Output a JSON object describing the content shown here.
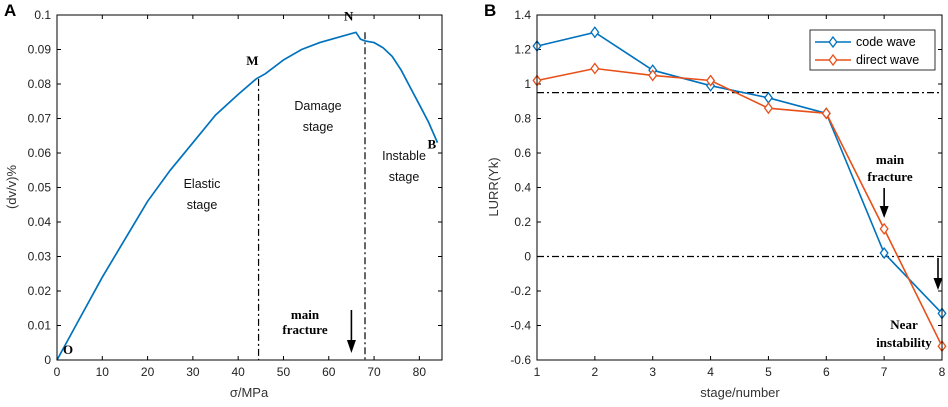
{
  "colors": {
    "blue": "#0072BD",
    "orange": "#E8501A"
  },
  "panel_a": {
    "label": "A",
    "chart_data": {
      "type": "line",
      "xlabel": "σ/MPa",
      "ylabel": "(dv/v)%",
      "xlim": [
        0,
        85
      ],
      "ylim": [
        0,
        0.1
      ],
      "xticks": [
        0,
        10,
        20,
        30,
        40,
        50,
        60,
        70,
        80
      ],
      "yticks": [
        0,
        0.01,
        0.02,
        0.03,
        0.04,
        0.05,
        0.06,
        0.07,
        0.08,
        0.09,
        0.1
      ],
      "x": [
        0,
        5,
        10,
        15,
        20,
        25,
        30,
        35,
        40,
        44,
        46,
        50,
        54,
        58,
        62,
        66,
        67,
        68,
        70,
        72,
        74,
        76,
        78,
        80,
        82,
        84
      ],
      "y": [
        0,
        0.012,
        0.024,
        0.035,
        0.046,
        0.055,
        0.063,
        0.071,
        0.077,
        0.0815,
        0.083,
        0.087,
        0.09,
        0.092,
        0.0935,
        0.095,
        0.093,
        0.0925,
        0.092,
        0.0905,
        0.088,
        0.084,
        0.079,
        0.074,
        0.069,
        0.063
      ],
      "vlines": [
        44.5,
        68
      ],
      "points": [
        {
          "name": "O",
          "x": 0,
          "y": 0
        },
        {
          "name": "M",
          "x": 44,
          "y": 0.0815
        },
        {
          "name": "N",
          "x": 66,
          "y": 0.095
        },
        {
          "name": "B",
          "x": 84,
          "y": 0.063
        }
      ],
      "regions": [
        {
          "line1": "Elastic",
          "line2": "stage"
        },
        {
          "line1": "Damage",
          "line2": "stage"
        },
        {
          "line1": "Instable",
          "line2": "stage"
        }
      ],
      "arrow_label": {
        "line1": "main",
        "line2": "fracture",
        "x": 65
      }
    }
  },
  "panel_b": {
    "label": "B",
    "chart_data": {
      "type": "line",
      "xlabel": "stage/number",
      "ylabel": "LURR(Yk)",
      "xlim": [
        1,
        8
      ],
      "ylim": [
        -0.6,
        1.4
      ],
      "xticks": [
        1,
        2,
        3,
        4,
        5,
        6,
        7,
        8
      ],
      "yticks": [
        -0.6,
        -0.4,
        -0.2,
        0,
        0.2,
        0.4,
        0.6,
        0.8,
        1,
        1.2,
        1.4
      ],
      "x": [
        1,
        2,
        3,
        4,
        5,
        6,
        7,
        8
      ],
      "series": [
        {
          "name": "code wave",
          "values": [
            1.22,
            1.3,
            1.08,
            0.99,
            0.92,
            0.83,
            0.02,
            -0.33
          ]
        },
        {
          "name": "direct wave",
          "values": [
            1.02,
            1.09,
            1.05,
            1.02,
            0.86,
            0.83,
            0.16,
            -0.52
          ]
        }
      ],
      "hlines": [
        0.95,
        0
      ],
      "annotations": [
        {
          "line1": "main",
          "line2": "fracture",
          "arrow_x": 7
        },
        {
          "line1": "Near",
          "line2": "instability",
          "arrow_x": 8
        }
      ],
      "legend": "top-right"
    }
  }
}
